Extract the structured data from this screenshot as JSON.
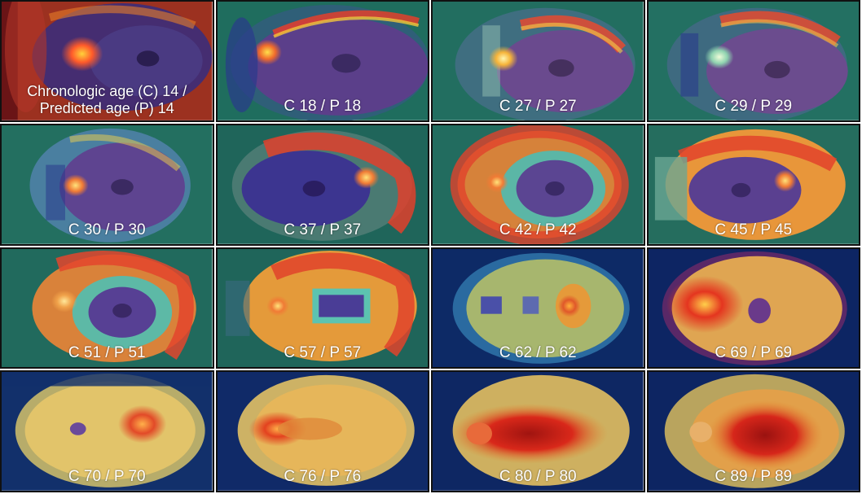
{
  "panels": [
    {
      "caption_line1": "Chronologic age (C) 14 /",
      "caption_line2": "Predicted age (P) 14",
      "chronologic_age": 14,
      "predicted_age": 14,
      "background": "#5e0f14",
      "hot_color": "#ff3b2e"
    },
    {
      "caption": "C 18 / P 18",
      "chronologic_age": 18,
      "predicted_age": 18,
      "background": "#1f6d5e",
      "hot_color": "#e3402c"
    },
    {
      "caption": "C 27 / P 27",
      "chronologic_age": 27,
      "predicted_age": 27,
      "background": "#226e60",
      "hot_color": "#e64a30"
    },
    {
      "caption": "C 29 / P 29",
      "chronologic_age": 29,
      "predicted_age": 29,
      "background": "#237062",
      "hot_color": "#e54a2f"
    },
    {
      "caption": "C 30 / P 30",
      "chronologic_age": 30,
      "predicted_age": 30,
      "background": "#236f60",
      "hot_color": "#e2432d"
    },
    {
      "caption": "C 37 / P 37",
      "chronologic_age": 37,
      "predicted_age": 37,
      "background": "#1f655a",
      "hot_color": "#e0402b"
    },
    {
      "caption": "C 42 / P 42",
      "chronologic_age": 42,
      "predicted_age": 42,
      "background": "#226c5f",
      "hot_color": "#e1422c"
    },
    {
      "caption": "C 45 / P 45",
      "chronologic_age": 45,
      "predicted_age": 45,
      "background": "#256d5e",
      "hot_color": "#e2432c"
    },
    {
      "caption": "C 51 / P 51",
      "chronologic_age": 51,
      "predicted_age": 51,
      "background": "#216a5d",
      "hot_color": "#e3452d"
    },
    {
      "caption": "C 57 / P 57",
      "chronologic_age": 57,
      "predicted_age": 57,
      "background": "#1f655a",
      "hot_color": "#e1432c"
    },
    {
      "caption": "C 62 / P 62",
      "chronologic_age": 62,
      "predicted_age": 62,
      "background": "#0d2a66",
      "hot_color": "#d9452a"
    },
    {
      "caption": "C 69 / P 69",
      "chronologic_age": 69,
      "predicted_age": 69,
      "background": "#0d2563",
      "hot_color": "#e4351f"
    },
    {
      "caption": "C 70 / P 70",
      "chronologic_age": 70,
      "predicted_age": 70,
      "background": "#12306b",
      "hot_color": "#e24a28"
    },
    {
      "caption": "C 76 / P 76",
      "chronologic_age": 76,
      "predicted_age": 76,
      "background": "#102a68",
      "hot_color": "#e3421f"
    },
    {
      "caption": "C 80 / P 80",
      "chronologic_age": 80,
      "predicted_age": 80,
      "background": "#0e2763",
      "hot_color": "#d9281a"
    },
    {
      "caption": "C 89 / P 89",
      "chronologic_age": 89,
      "predicted_age": 89,
      "background": "#0d2562",
      "hot_color": "#d6261a"
    }
  ]
}
